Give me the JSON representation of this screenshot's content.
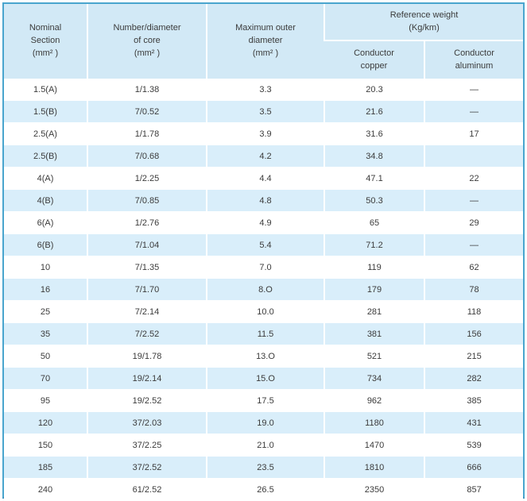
{
  "table": {
    "header": {
      "nominal_section": {
        "lines": [
          "Nominal",
          "Section",
          "(mm² )"
        ]
      },
      "number_diameter": {
        "lines": [
          "Number/diameter",
          "of core",
          "(mm² )"
        ]
      },
      "max_outer_diameter": {
        "lines": [
          "Maximum outer",
          "diameter",
          "(mm² )"
        ]
      },
      "reference_weight": {
        "lines": [
          "Reference weight",
          "(Kg/km)"
        ]
      },
      "conductor_copper": {
        "lines": [
          "Conductor",
          "copper"
        ]
      },
      "conductor_aluminum": {
        "lines": [
          "Conductor",
          "aluminum"
        ]
      }
    },
    "rows": [
      [
        "1.5(A)",
        "1/1.38",
        "3.3",
        "20.3",
        "—"
      ],
      [
        "1.5(B)",
        "7/0.52",
        "3.5",
        "21.6",
        "—"
      ],
      [
        "2.5(A)",
        "1/1.78",
        "3.9",
        "31.6",
        "17"
      ],
      [
        "2.5(B)",
        "7/0.68",
        "4.2",
        "34.8",
        ""
      ],
      [
        "4(A)",
        "1/2.25",
        "4.4",
        "47.1",
        "22"
      ],
      [
        "4(B)",
        "7/0.85",
        "4.8",
        "50.3",
        "—"
      ],
      [
        "6(A)",
        "1/2.76",
        "4.9",
        "65",
        "29"
      ],
      [
        "6(B)",
        "7/1.04",
        "5.4",
        "71.2",
        "—"
      ],
      [
        "10",
        "7/1.35",
        "7.0",
        "119",
        "62"
      ],
      [
        "16",
        "7/1.70",
        "8.O",
        "179",
        "78"
      ],
      [
        "25",
        "7/2.14",
        "10.0",
        "281",
        "118"
      ],
      [
        "35",
        "7/2.52",
        "11.5",
        "381",
        "156"
      ],
      [
        "50",
        "19/1.78",
        "13.O",
        "521",
        "215"
      ],
      [
        "70",
        "19/2.14",
        "15.O",
        "734",
        "282"
      ],
      [
        "95",
        "19/2.52",
        "17.5",
        "962",
        "385"
      ],
      [
        "120",
        "37/2.03",
        "19.0",
        "1180",
        "431"
      ],
      [
        "150",
        "37/2.25",
        "21.0",
        "1470",
        "539"
      ],
      [
        "185",
        "37/2.52",
        "23.5",
        "1810",
        "666"
      ],
      [
        "240",
        "61/2.52",
        "26.5",
        "2350",
        "857"
      ]
    ]
  },
  "chart_data": {
    "type": "table",
    "title": "",
    "columns": [
      "Nominal Section (mm²)",
      "Number/diameter of core (mm²)",
      "Maximum outer diameter (mm²)",
      "Reference weight (Kg/km) - Conductor copper",
      "Reference weight (Kg/km) - Conductor aluminum"
    ],
    "rows": [
      [
        "1.5(A)",
        "1/1.38",
        "3.3",
        "20.3",
        "—"
      ],
      [
        "1.5(B)",
        "7/0.52",
        "3.5",
        "21.6",
        "—"
      ],
      [
        "2.5(A)",
        "1/1.78",
        "3.9",
        "31.6",
        "17"
      ],
      [
        "2.5(B)",
        "7/0.68",
        "4.2",
        "34.8",
        ""
      ],
      [
        "4(A)",
        "1/2.25",
        "4.4",
        "47.1",
        "22"
      ],
      [
        "4(B)",
        "7/0.85",
        "4.8",
        "50.3",
        "—"
      ],
      [
        "6(A)",
        "1/2.76",
        "4.9",
        "65",
        "29"
      ],
      [
        "6(B)",
        "7/1.04",
        "5.4",
        "71.2",
        "—"
      ],
      [
        "10",
        "7/1.35",
        "7.0",
        "119",
        "62"
      ],
      [
        "16",
        "7/1.70",
        "8.O",
        "179",
        "78"
      ],
      [
        "25",
        "7/2.14",
        "10.0",
        "281",
        "118"
      ],
      [
        "35",
        "7/2.52",
        "11.5",
        "381",
        "156"
      ],
      [
        "50",
        "19/1.78",
        "13.O",
        "521",
        "215"
      ],
      [
        "70",
        "19/2.14",
        "15.O",
        "734",
        "282"
      ],
      [
        "95",
        "19/2.52",
        "17.5",
        "962",
        "385"
      ],
      [
        "120",
        "37/2.03",
        "19.0",
        "1180",
        "431"
      ],
      [
        "150",
        "37/2.25",
        "21.0",
        "1470",
        "539"
      ],
      [
        "185",
        "37/2.52",
        "23.5",
        "1810",
        "666"
      ],
      [
        "240",
        "61/2.52",
        "26.5",
        "2350",
        "857"
      ]
    ]
  },
  "colors": {
    "header_bg": "#d2e9f6",
    "alt_row_bg": "#d9eefa",
    "frame_border": "#49a5ce",
    "bottom_border": "#3c91bd",
    "text": "#3b3b3b"
  }
}
